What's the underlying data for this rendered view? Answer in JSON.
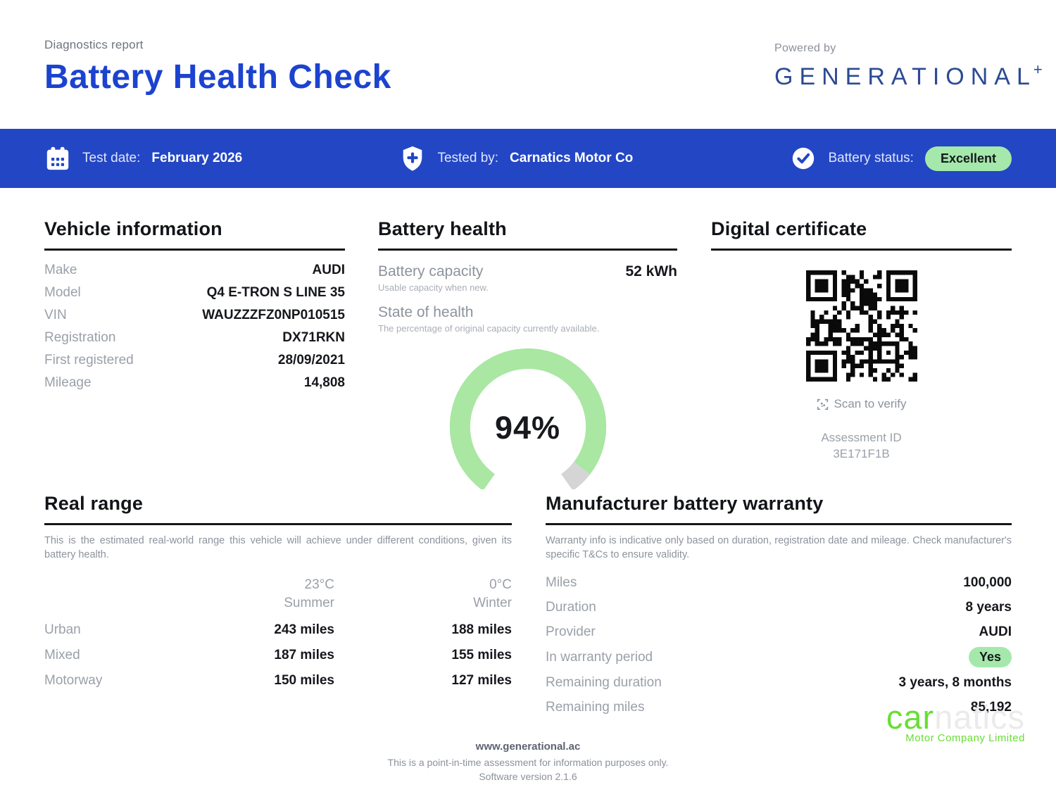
{
  "colors": {
    "primary_blue": "#2346c5",
    "title_blue": "#1c43cf",
    "brand_navy": "#2c4a94",
    "status_pill_green": "#a5e8ab",
    "gauge_green": "#a9e7a3",
    "gauge_gray": "#d5d5d5",
    "logo_green": "#68de34"
  },
  "header": {
    "kicker": "Diagnostics report",
    "title": "Battery Health Check",
    "powered_by": "Powered by",
    "brand": "GENERATIONAL",
    "brand_plus": "+"
  },
  "status_bar": {
    "test_date_label": "Test date:",
    "test_date": "February 2026",
    "tested_by_label": "Tested by:",
    "tested_by": "Carnatics Motor Co",
    "battery_status_label": "Battery status:",
    "battery_status": "Excellent"
  },
  "vehicle_info": {
    "title": "Vehicle information",
    "rows": [
      {
        "label": "Make",
        "value": "AUDI"
      },
      {
        "label": "Model",
        "value": "Q4 E-TRON S LINE 35"
      },
      {
        "label": "VIN",
        "value": "WAUZZZFZ0NP010515"
      },
      {
        "label": "Registration",
        "value": "DX71RKN"
      },
      {
        "label": "First registered",
        "value": "28/09/2021"
      },
      {
        "label": "Mileage",
        "value": "14,808"
      }
    ]
  },
  "battery_health": {
    "title": "Battery health",
    "capacity_label": "Battery capacity",
    "capacity_sub": "Usable capacity when new.",
    "capacity_value": "52 kWh",
    "soh_label": "State of health",
    "soh_sub": "The percentage of original capacity currently available.",
    "soh_percent": 94,
    "soh_display": "94%"
  },
  "digital_certificate": {
    "title": "Digital certificate",
    "scan_label": "Scan to verify",
    "assessment_id_label": "Assessment ID",
    "assessment_id": "3E171F1B"
  },
  "real_range": {
    "title": "Real range",
    "description": "This is the estimated real-world range this vehicle will achieve under different conditions, given its battery health.",
    "columns": [
      {
        "temp": "23°C",
        "season": "Summer"
      },
      {
        "temp": "0°C",
        "season": "Winter"
      }
    ],
    "rows": [
      {
        "label": "Urban",
        "summer": "243 miles",
        "winter": "188 miles"
      },
      {
        "label": "Mixed",
        "summer": "187 miles",
        "winter": "155 miles"
      },
      {
        "label": "Motorway",
        "summer": "150 miles",
        "winter": "127 miles"
      }
    ]
  },
  "warranty": {
    "title": "Manufacturer battery warranty",
    "description": "Warranty info is indicative only based on duration, registration date and mileage. Check manufacturer's specific T&Cs to ensure validity.",
    "rows": [
      {
        "label": "Miles",
        "value": "100,000"
      },
      {
        "label": "Duration",
        "value": "8 years"
      },
      {
        "label": "Provider",
        "value": "AUDI"
      },
      {
        "label": "In warranty period",
        "value": "Yes",
        "pill": true
      },
      {
        "label": "Remaining duration",
        "value": "3 years, 8 months"
      },
      {
        "label": "Remaining miles",
        "value": "85,192"
      }
    ]
  },
  "footer": {
    "url": "www.generational.ac",
    "disclaimer": "This is a point-in-time assessment for information purposes only.",
    "version": "Software version 2.1.6"
  },
  "logo": {
    "part1": "car",
    "part2": "natics",
    "subtitle": "Motor Company Limited"
  }
}
